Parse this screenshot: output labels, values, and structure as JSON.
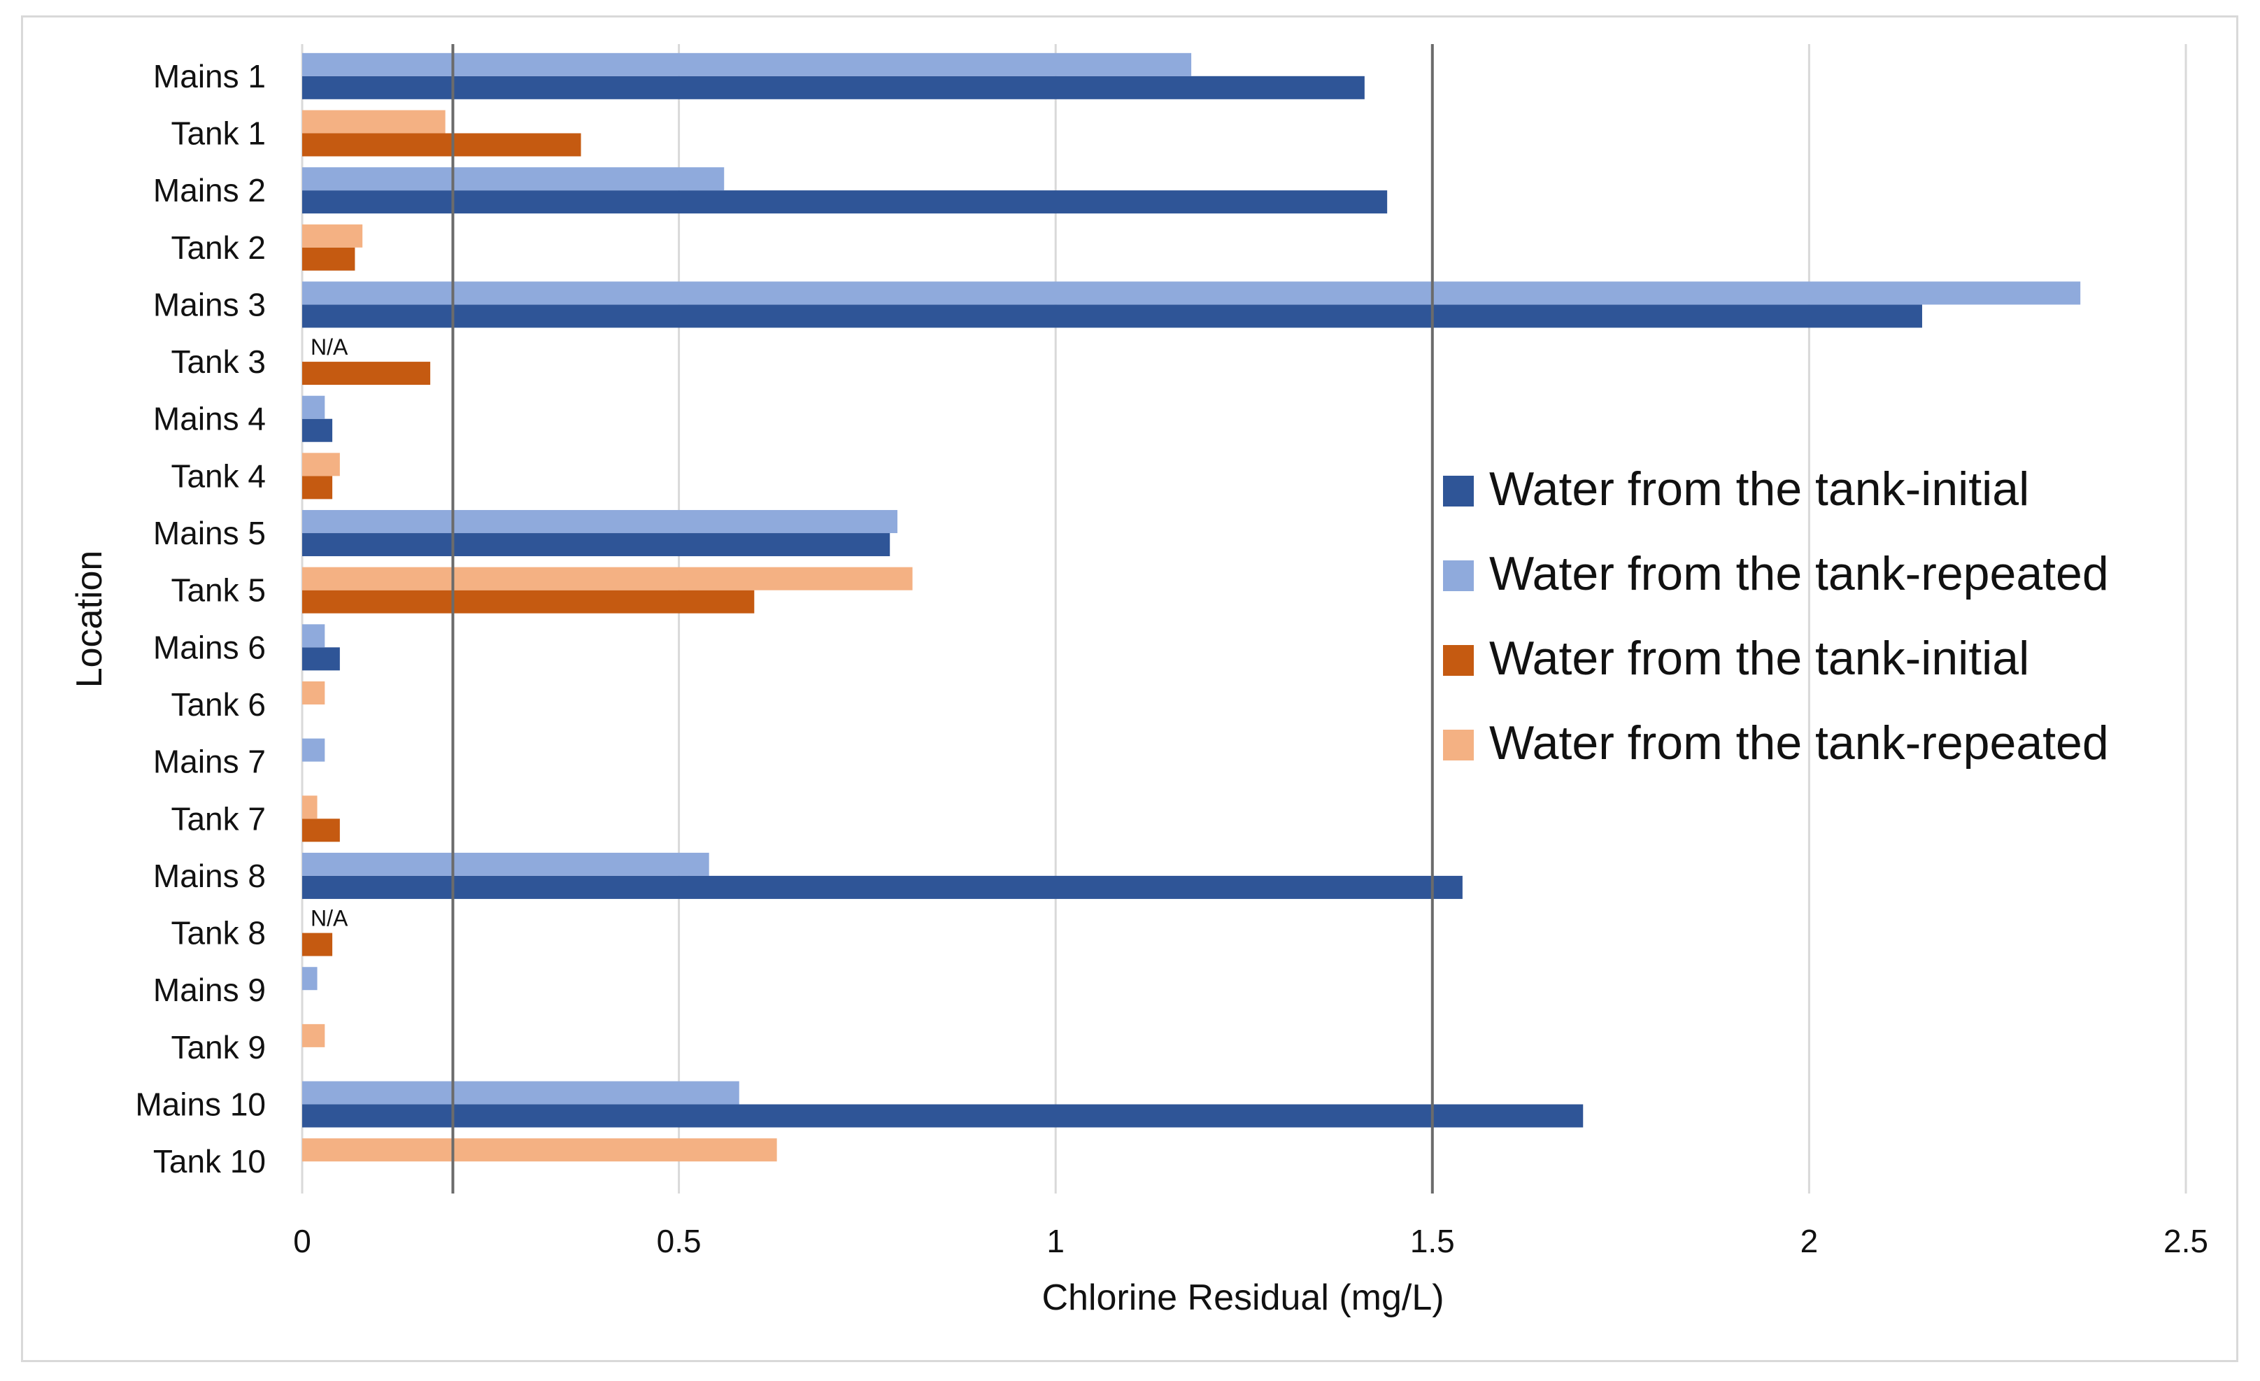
{
  "chart_data": {
    "type": "bar",
    "orientation": "horizontal",
    "title": "",
    "xlabel": "Chlorine Residual (mg/L)",
    "ylabel": "Location",
    "xlim": [
      0,
      2.5
    ],
    "xticks": [
      {
        "value": 0,
        "label": "0"
      },
      {
        "value": 0.5,
        "label": "0.5"
      },
      {
        "value": 1,
        "label": "1"
      },
      {
        "value": 1.5,
        "label": "1.5"
      },
      {
        "value": 2,
        "label": "2"
      },
      {
        "value": 2.5,
        "label": "2.5"
      }
    ],
    "grid": true,
    "reference_lines": [
      0.2,
      1.5
    ],
    "categories": [
      "Mains 1",
      "Tank 1",
      "Mains 2",
      "Tank 2",
      "Mains 3",
      "Tank 3",
      "Mains 4",
      "Tank 4",
      "Mains 5",
      "Tank 5",
      "Mains 6",
      "Tank 6",
      "Mains 7",
      "Tank 7",
      "Mains 8",
      "Tank 8",
      "Mains 9",
      "Tank 9",
      "Mains 10",
      "Tank 10"
    ],
    "legend_position": "right",
    "series": [
      {
        "name": "Water from the tank-initial",
        "color": "#2F5597",
        "group": "mains",
        "slot": "initial",
        "values": [
          1.41,
          null,
          1.44,
          null,
          2.15,
          null,
          0.04,
          null,
          0.78,
          null,
          0.05,
          null,
          null,
          null,
          1.54,
          null,
          null,
          null,
          1.7,
          null
        ]
      },
      {
        "name": "Water from the tank-repeated",
        "color": "#8FAADC",
        "group": "mains",
        "slot": "repeated",
        "values": [
          1.18,
          null,
          0.56,
          null,
          2.36,
          null,
          0.03,
          null,
          0.79,
          null,
          0.03,
          null,
          0.03,
          null,
          0.54,
          null,
          0.02,
          null,
          0.58,
          null
        ]
      },
      {
        "name": "Water from the tank-initial",
        "color": "#C55A11",
        "group": "tank",
        "slot": "initial",
        "values": [
          null,
          0.37,
          null,
          0.07,
          null,
          0.17,
          null,
          0.04,
          null,
          0.6,
          null,
          null,
          null,
          0.05,
          null,
          0.04,
          null,
          null,
          null,
          null
        ]
      },
      {
        "name": "Water from the tank-repeated",
        "color": "#F4B183",
        "group": "tank",
        "slot": "repeated",
        "values": [
          null,
          0.19,
          null,
          0.08,
          null,
          null,
          null,
          0.05,
          null,
          0.81,
          null,
          0.03,
          null,
          0.02,
          null,
          null,
          null,
          0.03,
          null,
          0.63
        ]
      }
    ],
    "annotations": [
      {
        "category": "Tank 3",
        "text": "N/A"
      },
      {
        "category": "Tank 8",
        "text": "N/A"
      }
    ]
  }
}
